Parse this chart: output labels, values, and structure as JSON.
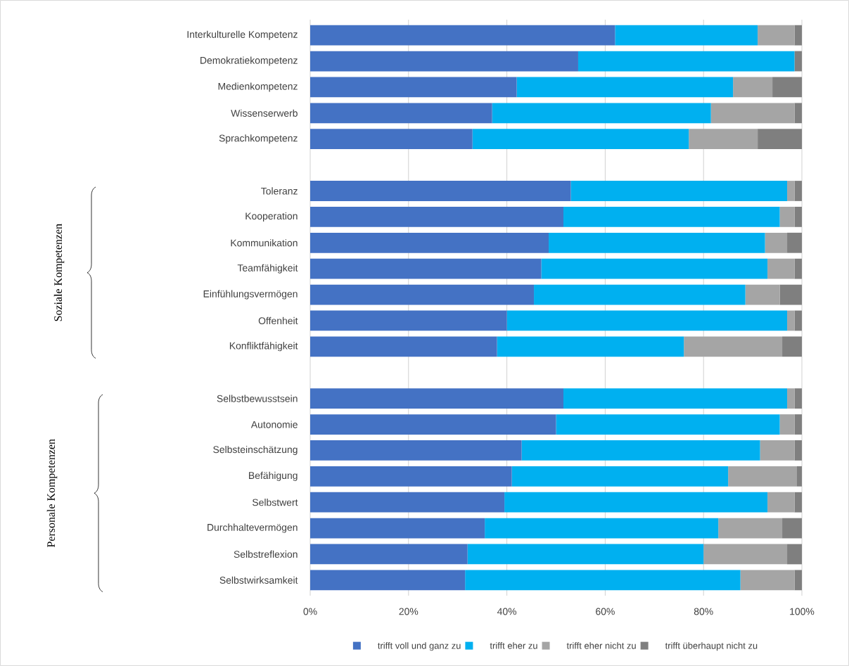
{
  "chart_data": {
    "type": "bar",
    "orientation": "horizontal",
    "stacked": true,
    "categories": [
      "Interkulturelle Kompetenz",
      "Demokratiekompetenz",
      "Medienkompetenz",
      "Wissenserwerb",
      "Sprachkompetenz",
      null,
      "Toleranz",
      "Kooperation",
      "Kommunikation",
      "Teamfähigkeit",
      "Einfühlungsvermögen",
      "Offenheit",
      "Konfliktfähigkeit",
      null,
      "Selbstbewusstsein",
      "Autonomie",
      "Selbsteinschätzung",
      "Befähigung",
      "Selbstwert",
      "Durchhaltevermögen",
      "Selbstreflexion",
      "Selbstwirksamkeit"
    ],
    "series": [
      {
        "name": "trifft voll und ganz zu",
        "color": "#4472c4",
        "values": [
          62,
          54.5,
          42,
          37,
          33,
          null,
          53,
          51.5,
          48.5,
          47,
          45.5,
          40,
          38,
          null,
          51.5,
          50,
          43,
          41,
          39.5,
          35.5,
          32,
          31.5
        ]
      },
      {
        "name": "trifft eher zu",
        "color": "#00b0f0",
        "values": [
          29,
          44,
          44,
          44.5,
          44,
          null,
          44,
          44,
          44,
          46,
          43,
          57,
          38,
          null,
          45.5,
          45.5,
          48.5,
          44,
          53.5,
          47.5,
          48,
          56
        ]
      },
      {
        "name": "trifft eher nicht zu",
        "color": "#a5a5a5",
        "values": [
          7.5,
          0,
          8,
          17,
          14,
          null,
          1.5,
          3,
          4.5,
          5.5,
          7,
          1.5,
          20,
          null,
          1.5,
          3,
          7,
          14,
          5.5,
          13,
          17,
          11
        ]
      },
      {
        "name": "trifft überhaupt nicht zu",
        "color": "#7f7f7f",
        "values": [
          1.5,
          1.5,
          6,
          1.5,
          9,
          null,
          1.5,
          1.5,
          3,
          1.5,
          4.5,
          1.5,
          4,
          null,
          1.5,
          1.5,
          1.5,
          1,
          1.5,
          4,
          3,
          1.5
        ]
      }
    ],
    "xlim": [
      0,
      100
    ],
    "xticks": [
      {
        "value": 0,
        "label": "0%"
      },
      {
        "value": 20,
        "label": "20%"
      },
      {
        "value": 40,
        "label": "40%"
      },
      {
        "value": 60,
        "label": "60%"
      },
      {
        "value": 80,
        "label": "80%"
      },
      {
        "value": 100,
        "label": "100%"
      }
    ],
    "grid": "x",
    "legend": "bottom",
    "annotations": [
      "Soziale Kompetenzen",
      "Personale Kompetenzen"
    ]
  }
}
